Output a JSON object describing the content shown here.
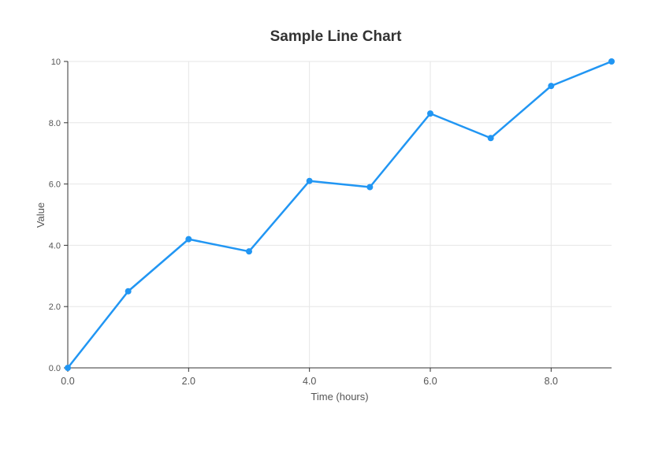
{
  "chart_data": {
    "type": "line",
    "title": "Sample Line Chart",
    "xlabel": "Time (hours)",
    "ylabel": "Value",
    "xlim": [
      0,
      9
    ],
    "ylim": [
      0,
      10
    ],
    "x_ticks": [
      0,
      2,
      4,
      6,
      8
    ],
    "x_tick_labels": [
      "0.0",
      "2.0",
      "4.0",
      "6.0",
      "8.0"
    ],
    "y_ticks": [
      0,
      2,
      4,
      6,
      8,
      10
    ],
    "y_tick_labels": [
      "0.0",
      "2.0",
      "4.0",
      "6.0",
      "8.0",
      "10"
    ],
    "grid": true,
    "series": [
      {
        "x": [
          0,
          1,
          2,
          3,
          4,
          5,
          6,
          7,
          8,
          9
        ],
        "values": [
          0,
          2.5,
          4.2,
          3.8,
          6.1,
          5.9,
          8.3,
          7.5,
          9.2,
          10
        ],
        "color": "#2196f3"
      }
    ]
  }
}
